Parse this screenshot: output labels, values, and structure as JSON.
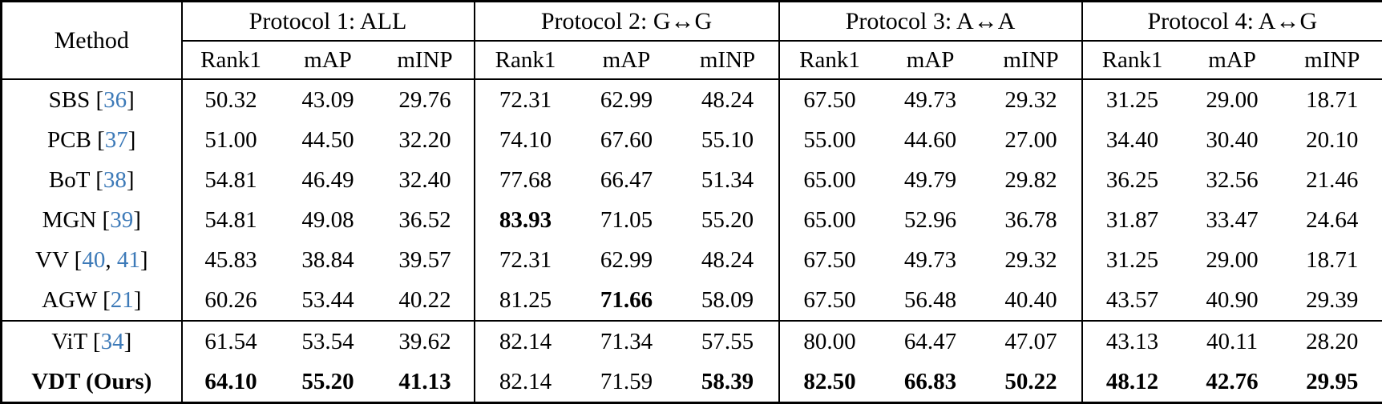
{
  "colors": {
    "citation_blue": "#3d7ab8",
    "text": "#000000",
    "background": "#ffffff"
  },
  "table": {
    "method_header": "Method",
    "protocols": [
      {
        "label": "Protocol 1: ALL",
        "metrics": [
          "Rank1",
          "mAP",
          "mINP"
        ]
      },
      {
        "label": "Protocol 2: G↔G",
        "metrics": [
          "Rank1",
          "mAP",
          "mINP"
        ]
      },
      {
        "label": "Protocol 3: A↔A",
        "metrics": [
          "Rank1",
          "mAP",
          "mINP"
        ]
      },
      {
        "label": "Protocol 4: A↔G",
        "metrics": [
          "Rank1",
          "mAP",
          "mINP"
        ]
      }
    ],
    "rows": [
      {
        "method": "SBS",
        "citation_refs": [
          "36"
        ],
        "bold_method": false,
        "section_start": false,
        "values": [
          "50.32",
          "43.09",
          "29.76",
          "72.31",
          "62.99",
          "48.24",
          "67.50",
          "49.73",
          "29.32",
          "31.25",
          "29.00",
          "18.71"
        ],
        "bold_values": []
      },
      {
        "method": "PCB",
        "citation_refs": [
          "37"
        ],
        "bold_method": false,
        "section_start": false,
        "values": [
          "51.00",
          "44.50",
          "32.20",
          "74.10",
          "67.60",
          "55.10",
          "55.00",
          "44.60",
          "27.00",
          "34.40",
          "30.40",
          "20.10"
        ],
        "bold_values": []
      },
      {
        "method": "BoT",
        "citation_refs": [
          "38"
        ],
        "bold_method": false,
        "section_start": false,
        "values": [
          "54.81",
          "46.49",
          "32.40",
          "77.68",
          "66.47",
          "51.34",
          "65.00",
          "49.79",
          "29.82",
          "36.25",
          "32.56",
          "21.46"
        ],
        "bold_values": []
      },
      {
        "method": "MGN",
        "citation_refs": [
          "39"
        ],
        "bold_method": false,
        "section_start": false,
        "values": [
          "54.81",
          "49.08",
          "36.52",
          "83.93",
          "71.05",
          "55.20",
          "65.00",
          "52.96",
          "36.78",
          "31.87",
          "33.47",
          "24.64"
        ],
        "bold_values": [
          3
        ]
      },
      {
        "method": "VV",
        "citation_refs": [
          "40",
          "41"
        ],
        "bold_method": false,
        "section_start": false,
        "values": [
          "45.83",
          "38.84",
          "39.57",
          "72.31",
          "62.99",
          "48.24",
          "67.50",
          "49.73",
          "29.32",
          "31.25",
          "29.00",
          "18.71"
        ],
        "bold_values": []
      },
      {
        "method": "AGW",
        "citation_refs": [
          "21"
        ],
        "bold_method": false,
        "section_start": false,
        "values": [
          "60.26",
          "53.44",
          "40.22",
          "81.25",
          "71.66",
          "58.09",
          "67.50",
          "56.48",
          "40.40",
          "43.57",
          "40.90",
          "29.39"
        ],
        "bold_values": [
          4
        ]
      },
      {
        "method": "ViT",
        "citation_refs": [
          "34"
        ],
        "bold_method": false,
        "section_start": true,
        "values": [
          "61.54",
          "53.54",
          "39.62",
          "82.14",
          "71.34",
          "57.55",
          "80.00",
          "64.47",
          "47.07",
          "43.13",
          "40.11",
          "28.20"
        ],
        "bold_values": []
      },
      {
        "method": "VDT (Ours)",
        "citation_refs": [],
        "bold_method": true,
        "section_start": false,
        "values": [
          "64.10",
          "55.20",
          "41.13",
          "82.14",
          "71.59",
          "58.39",
          "82.50",
          "66.83",
          "50.22",
          "48.12",
          "42.76",
          "29.95"
        ],
        "bold_values": [
          0,
          1,
          2,
          5,
          6,
          7,
          8,
          9,
          10,
          11
        ]
      }
    ]
  }
}
